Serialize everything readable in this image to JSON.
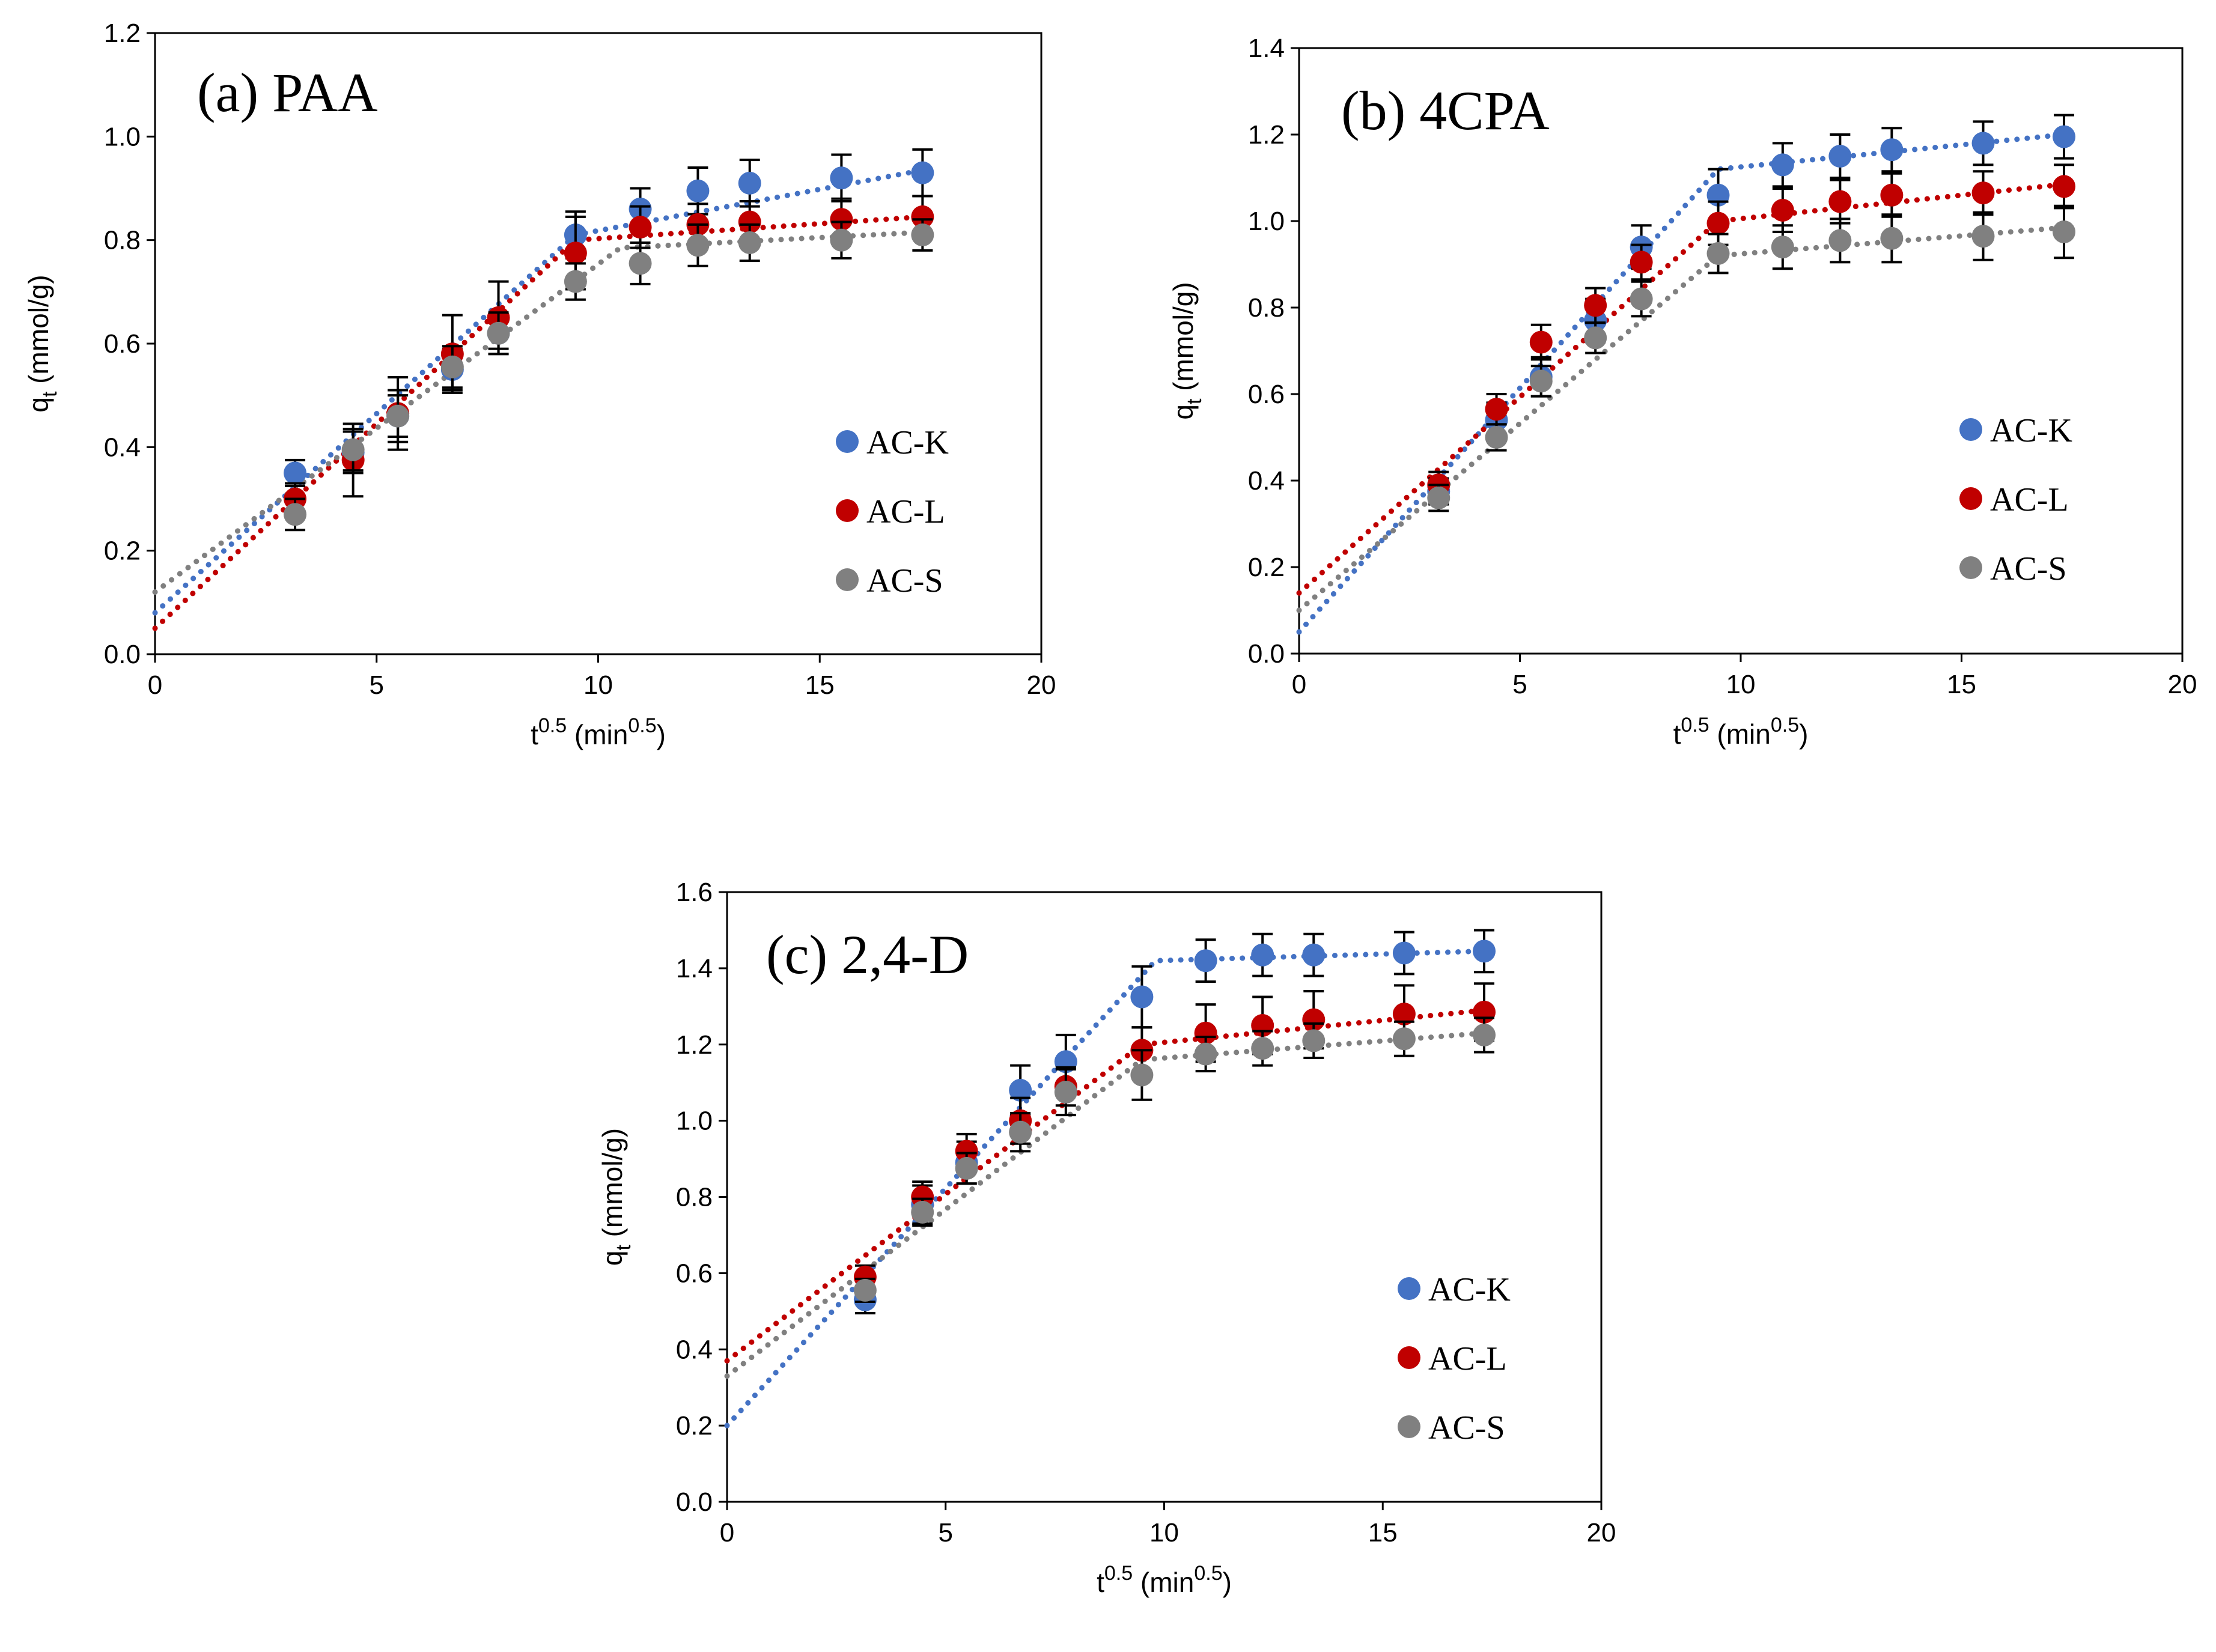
{
  "chart_data": [
    {
      "type": "scatter",
      "title": "(a) PAA",
      "xlabel": "t^0.5 (min^0.5)",
      "ylabel": "qt (mmol/g)",
      "xlim": [
        0,
        20
      ],
      "ylim": [
        0,
        1.2
      ],
      "xticks": [
        0,
        5,
        10,
        15,
        20
      ],
      "xtick_labels": [
        "0",
        "5",
        "10",
        "15",
        "20"
      ],
      "yticks": [
        0,
        0.2,
        0.4,
        0.6,
        0.8,
        1.0,
        1.2
      ],
      "ytick_labels": [
        "0.0",
        "0.2",
        "0.4",
        "0.6",
        "0.8",
        "1.0",
        "1.2"
      ],
      "legend_position": "right",
      "series": [
        {
          "name": "AC-K",
          "color": "#4472C4",
          "x": [
            3.16,
            4.47,
            5.48,
            6.71,
            7.75,
            9.49,
            10.95,
            12.25,
            13.42,
            15.49,
            17.32
          ],
          "y": [
            0.35,
            0.39,
            0.46,
            0.55,
            0.62,
            0.81,
            0.86,
            0.895,
            0.91,
            0.92,
            0.93
          ],
          "err": [
            0.025,
            0.04,
            0.05,
            0.04,
            0.03,
            0.045,
            0.04,
            0.045,
            0.045,
            0.045,
            0.045
          ],
          "trend": [
            [
              0,
              0.08
            ],
            [
              9.49,
              0.81
            ],
            [
              17.32,
              0.935
            ]
          ]
        },
        {
          "name": "AC-L",
          "color": "#C00000",
          "x": [
            3.16,
            4.47,
            5.48,
            6.71,
            7.75,
            9.49,
            10.95,
            12.25,
            13.42,
            15.49,
            17.32
          ],
          "y": [
            0.3,
            0.375,
            0.465,
            0.58,
            0.65,
            0.775,
            0.825,
            0.83,
            0.835,
            0.84,
            0.845
          ],
          "err": [
            0.03,
            0.07,
            0.07,
            0.075,
            0.07,
            0.07,
            0.04,
            0.04,
            0.04,
            0.04,
            0.04
          ],
          "trend": [
            [
              0,
              0.05
            ],
            [
              9.49,
              0.8
            ],
            [
              17.32,
              0.845
            ]
          ]
        },
        {
          "name": "AC-S",
          "color": "#808080",
          "x": [
            3.16,
            4.47,
            5.48,
            6.71,
            7.75,
            9.49,
            10.95,
            12.25,
            13.42,
            15.49,
            17.32
          ],
          "y": [
            0.27,
            0.395,
            0.46,
            0.555,
            0.62,
            0.72,
            0.755,
            0.79,
            0.795,
            0.8,
            0.81
          ],
          "err": [
            0.03,
            0.04,
            0.04,
            0.04,
            0.04,
            0.035,
            0.04,
            0.04,
            0.035,
            0.035,
            0.03
          ],
          "trend": [
            [
              0,
              0.12
            ],
            [
              10.5,
              0.785
            ],
            [
              17.32,
              0.815
            ]
          ]
        }
      ]
    },
    {
      "type": "scatter",
      "title": "(b) 4CPA",
      "xlabel": "t^0.5 (min^0.5)",
      "ylabel": "qt (mmol/g)",
      "xlim": [
        0,
        20
      ],
      "ylim": [
        0,
        1.4
      ],
      "xticks": [
        0,
        5,
        10,
        15,
        20
      ],
      "xtick_labels": [
        "0",
        "5",
        "10",
        "15",
        "20"
      ],
      "yticks": [
        0,
        0.2,
        0.4,
        0.6,
        0.8,
        1.0,
        1.2,
        1.4
      ],
      "ytick_labels": [
        "0.0",
        "0.2",
        "0.4",
        "0.6",
        "0.8",
        "1.0",
        "1.2",
        "1.4"
      ],
      "legend_position": "right",
      "series": [
        {
          "name": "AC-K",
          "color": "#4472C4",
          "x": [
            3.16,
            4.47,
            5.48,
            6.71,
            7.75,
            9.49,
            10.95,
            12.25,
            13.42,
            15.49,
            17.32
          ],
          "y": [
            0.375,
            0.54,
            0.64,
            0.77,
            0.94,
            1.06,
            1.13,
            1.15,
            1.165,
            1.18,
            1.195
          ],
          "err": [
            0.03,
            0.04,
            0.045,
            0.05,
            0.05,
            0.06,
            0.05,
            0.05,
            0.05,
            0.05,
            0.05
          ],
          "trend": [
            [
              0,
              0.05
            ],
            [
              9.49,
              1.12
            ],
            [
              17.32,
              1.2
            ]
          ]
        },
        {
          "name": "AC-L",
          "color": "#C00000",
          "x": [
            3.16,
            4.47,
            5.48,
            6.71,
            7.75,
            9.49,
            10.95,
            12.25,
            13.42,
            15.49,
            17.32
          ],
          "y": [
            0.39,
            0.565,
            0.72,
            0.805,
            0.905,
            0.995,
            1.025,
            1.045,
            1.06,
            1.065,
            1.08
          ],
          "err": [
            0.03,
            0.035,
            0.04,
            0.04,
            0.04,
            0.05,
            0.05,
            0.05,
            0.05,
            0.05,
            0.05
          ],
          "trend": [
            [
              0,
              0.14
            ],
            [
              9.49,
              1.0
            ],
            [
              17.32,
              1.085
            ]
          ]
        },
        {
          "name": "AC-S",
          "color": "#808080",
          "x": [
            3.16,
            4.47,
            5.48,
            6.71,
            7.75,
            9.49,
            10.95,
            12.25,
            13.42,
            15.49,
            17.32
          ],
          "y": [
            0.36,
            0.5,
            0.63,
            0.73,
            0.82,
            0.925,
            0.94,
            0.955,
            0.96,
            0.965,
            0.975
          ],
          "err": [
            0.03,
            0.03,
            0.035,
            0.035,
            0.04,
            0.045,
            0.05,
            0.05,
            0.055,
            0.055,
            0.06
          ],
          "trend": [
            [
              0,
              0.1
            ],
            [
              9.49,
              0.92
            ],
            [
              17.32,
              0.985
            ]
          ]
        }
      ]
    },
    {
      "type": "scatter",
      "title": "(c) 2,4-D",
      "xlabel": "t^0.5 (min^0.5)",
      "ylabel": "qt (mmol/g)",
      "xlim": [
        0,
        20
      ],
      "ylim": [
        0,
        1.6
      ],
      "xticks": [
        0,
        5,
        10,
        15,
        20
      ],
      "xtick_labels": [
        "0",
        "5",
        "10",
        "15",
        "20"
      ],
      "yticks": [
        0,
        0.2,
        0.4,
        0.6,
        0.8,
        1.0,
        1.2,
        1.4,
        1.6
      ],
      "ytick_labels": [
        "0.0",
        "0.2",
        "0.4",
        "0.6",
        "0.8",
        "1.0",
        "1.2",
        "1.4",
        "1.6"
      ],
      "legend_position": "right",
      "series": [
        {
          "name": "AC-K",
          "color": "#4472C4",
          "x": [
            3.16,
            4.47,
            5.48,
            6.71,
            7.75,
            9.49,
            10.95,
            12.25,
            13.42,
            15.49,
            17.32
          ],
          "y": [
            0.53,
            0.78,
            0.89,
            1.08,
            1.155,
            1.325,
            1.42,
            1.435,
            1.435,
            1.44,
            1.445
          ],
          "err": [
            0.035,
            0.05,
            0.055,
            0.065,
            0.07,
            0.08,
            0.055,
            0.055,
            0.055,
            0.055,
            0.055
          ],
          "trend": [
            [
              0,
              0.2
            ],
            [
              9.8,
              1.42
            ],
            [
              17.32,
              1.445
            ]
          ]
        },
        {
          "name": "AC-L",
          "color": "#C00000",
          "x": [
            3.16,
            4.47,
            5.48,
            6.71,
            7.75,
            9.49,
            10.95,
            12.25,
            13.42,
            15.49,
            17.32
          ],
          "y": [
            0.59,
            0.8,
            0.92,
            1.0,
            1.09,
            1.185,
            1.23,
            1.25,
            1.265,
            1.28,
            1.285
          ],
          "err": [
            0.03,
            0.04,
            0.045,
            0.06,
            0.05,
            0.06,
            0.075,
            0.075,
            0.075,
            0.075,
            0.075
          ],
          "trend": [
            [
              0,
              0.37
            ],
            [
              9.49,
              1.2
            ],
            [
              17.32,
              1.29
            ]
          ]
        },
        {
          "name": "AC-S",
          "color": "#808080",
          "x": [
            3.16,
            4.47,
            5.48,
            6.71,
            7.75,
            9.49,
            10.95,
            12.25,
            13.42,
            15.49,
            17.32
          ],
          "y": [
            0.555,
            0.76,
            0.875,
            0.97,
            1.075,
            1.12,
            1.175,
            1.19,
            1.21,
            1.215,
            1.225
          ],
          "err": [
            0.03,
            0.035,
            0.04,
            0.05,
            0.06,
            0.065,
            0.045,
            0.045,
            0.045,
            0.045,
            0.045
          ],
          "trend": [
            [
              0,
              0.33
            ],
            [
              9.49,
              1.16
            ],
            [
              17.32,
              1.23
            ]
          ]
        }
      ]
    }
  ]
}
